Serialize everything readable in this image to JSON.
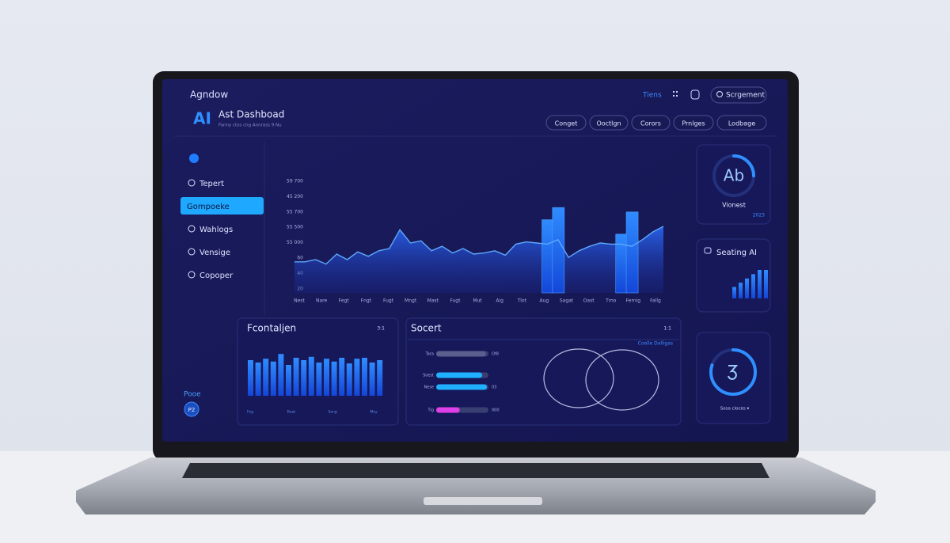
{
  "header": {
    "app": "Agndow",
    "nav": "Tiens",
    "search": "Scrgement",
    "logo": "AI",
    "title": "Ast Dashboad",
    "subtitle": "Fanny ctos cng Annrass 9 Nu",
    "filters": [
      "Conget",
      "Ooctlgn",
      "Corors",
      "Prnlges",
      "Lodbage"
    ]
  },
  "sidebar": {
    "items": [
      "Tepert",
      "Gompoeke",
      "Wahlogs",
      "Vensige",
      "Copoper"
    ],
    "active": 1,
    "footer": "Pooe",
    "avatar": "P2"
  },
  "main_chart": {
    "y_labels": [
      "59 700",
      "45 200",
      "55 700",
      "55 500",
      "55 000",
      "60",
      "40",
      "20"
    ],
    "x_labels": [
      "Nest",
      "Nare",
      "Fegt",
      "Fngt",
      "Fugt",
      "Mngt",
      "Mast",
      "Fugt",
      "Mut",
      "Aig",
      "Tlot",
      "Aug",
      "Sagat",
      "Oast",
      "Tmo",
      "Fernig",
      "Fallg"
    ],
    "line": [
      28,
      28,
      30,
      26,
      35,
      30,
      37,
      33,
      38,
      40,
      57,
      45,
      47,
      38,
      42,
      36,
      40,
      35,
      36,
      38,
      34,
      44,
      46,
      45,
      44,
      48,
      32,
      38,
      42,
      45,
      44,
      44,
      42,
      48,
      55,
      60
    ],
    "bars": [
      null,
      null,
      null,
      null,
      null,
      null,
      null,
      null,
      null,
      null,
      null,
      null,
      null,
      null,
      null,
      null,
      null,
      null,
      null,
      null,
      null,
      null,
      null,
      null,
      66,
      77,
      null,
      null,
      null,
      null,
      null,
      53,
      73,
      null,
      null,
      null
    ]
  },
  "card_left": {
    "title": "Fcontaljen",
    "badge": "3:1",
    "values": [
      75,
      70,
      78,
      72,
      88,
      65,
      80,
      75,
      82,
      70,
      78,
      72,
      80,
      68,
      78,
      80,
      70,
      75
    ],
    "labels": [
      "Fog",
      "Baet",
      "Sang",
      "Mey"
    ]
  },
  "card_mid": {
    "title": "Socert",
    "badge": "1:1",
    "legend": "Coelle Dalligas",
    "rows": [
      {
        "label": "Tara",
        "value": 95,
        "note": "Of8"
      },
      {
        "label": "Soest",
        "value": 88,
        "note": null
      },
      {
        "label": "Nese",
        "value": 97,
        "note": "03"
      },
      {
        "label": "Tig",
        "value": 45,
        "note": "000"
      }
    ]
  },
  "card_ring": {
    "label": "Ab",
    "caption": "Vionest",
    "year": "2023",
    "progress": 25
  },
  "card_bars": {
    "title": "Seating AI",
    "values": [
      40,
      55,
      70,
      85,
      100,
      100
    ]
  },
  "card_gauge": {
    "progress": 80,
    "caption": "Sosa cloces ▾"
  }
}
